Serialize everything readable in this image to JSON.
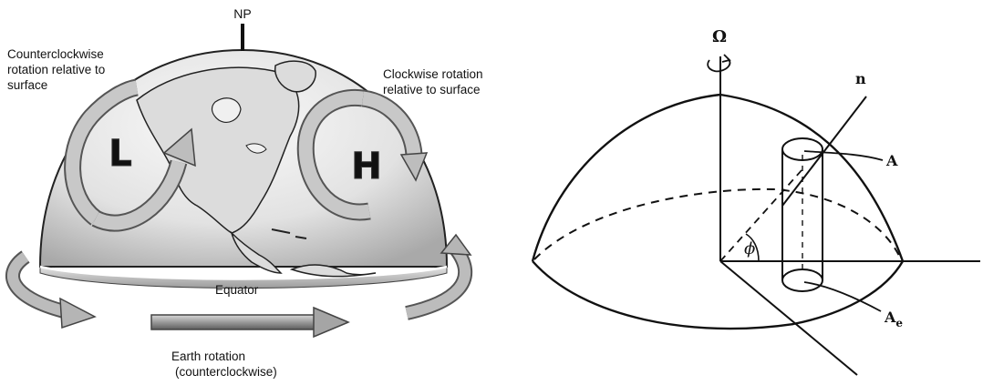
{
  "left_diagram": {
    "pole_label": "NP",
    "low_symbol": "L",
    "high_symbol": "H",
    "low_caption": [
      "Counterclockwise",
      "rotation relative to",
      "surface"
    ],
    "high_caption": [
      "Clockwise rotation",
      "relative to surface"
    ],
    "equator_label": "Equator",
    "rotation_caption": [
      "Earth rotation",
      "(counterclockwise)"
    ]
  },
  "right_diagram": {
    "omega_label": "Ω",
    "normal_label": "n",
    "area_top_label": "A",
    "area_bottom_label": "A",
    "area_bottom_subscript": "e",
    "angle_label": "ϕ"
  },
  "colors": {
    "ink": "#111111",
    "globe_light": "#f4f4f4",
    "globe_dark": "#b8b8b8",
    "arrow_fill": "#9a9a9a"
  }
}
